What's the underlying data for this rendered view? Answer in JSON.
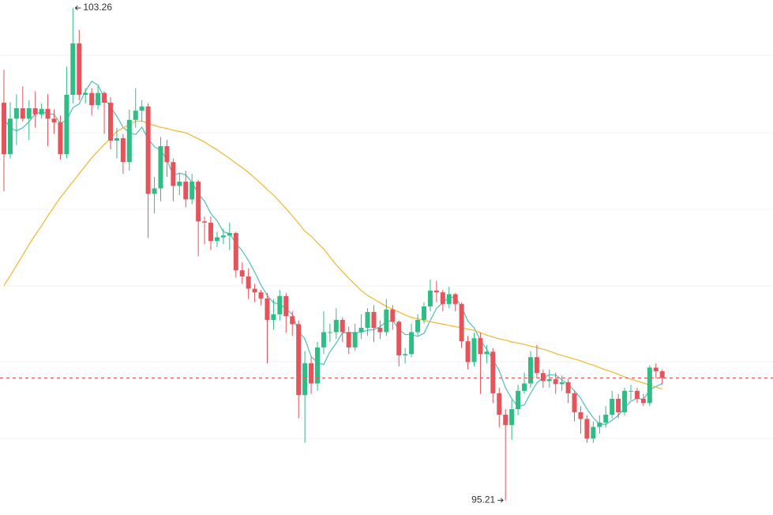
{
  "chart_data": {
    "type": "candlestick",
    "up_color": "#2ebd85",
    "down_color": "#e5535b",
    "ylim": [
      94.97,
      103.39
    ],
    "open": [
      101.71,
      100.87,
      101.45,
      101.62,
      101.45,
      101.62,
      101.52,
      101.61,
      101.45,
      101.39,
      100.87,
      101.84,
      102.68,
      101.84,
      101.87,
      101.67,
      101.87,
      101.71,
      101.09,
      101.13,
      100.74,
      101.43,
      101.58,
      101.65,
      100.22,
      100.31,
      101.0,
      100.74,
      100.35,
      100.42,
      100.13,
      100.42,
      99.77,
      99.75,
      99.45,
      99.51,
      99.54,
      99.58,
      98.97,
      98.87,
      98.67,
      98.61,
      98.51,
      98.16,
      98.25,
      98.55,
      98.22,
      98.09,
      96.93,
      97.45,
      97.12,
      97.71,
      97.96,
      97.96,
      98.16,
      97.96,
      97.71,
      97.96,
      98.03,
      98.29,
      98.03,
      97.96,
      98.33,
      98.13,
      97.58,
      97.6,
      97.96,
      98.16,
      98.38,
      98.64,
      98.61,
      98.42,
      98.58,
      98.42,
      97.81,
      97.47,
      97.86,
      97.6,
      97.64,
      96.96,
      96.61,
      96.44,
      96.7,
      97.0,
      97.12,
      97.55,
      97.29,
      97.16,
      97.19,
      97.11,
      97.14,
      96.96,
      96.65,
      96.54,
      96.22,
      96.41,
      96.48,
      96.61,
      96.87,
      96.65,
      97.0,
      97.0,
      96.87,
      96.8,
      97.38,
      97.32
    ],
    "high": [
      102.25,
      101.72,
      101.85,
      101.98,
      101.75,
      101.9,
      101.7,
      101.85,
      101.6,
      101.5,
      102.3,
      103.26,
      102.9,
      101.95,
      101.95,
      101.98,
      101.9,
      101.8,
      101.3,
      101.2,
      101.6,
      101.95,
      101.75,
      101.7,
      100.5,
      101.15,
      101.1,
      100.8,
      100.55,
      100.6,
      100.55,
      100.45,
      99.85,
      99.85,
      99.6,
      99.65,
      99.75,
      99.6,
      99.1,
      99.0,
      98.75,
      98.65,
      98.6,
      98.5,
      98.65,
      98.6,
      98.3,
      98.15,
      97.65,
      97.55,
      97.8,
      98.3,
      98.1,
      98.35,
      98.2,
      98.05,
      98.1,
      98.25,
      98.35,
      98.4,
      98.15,
      98.5,
      98.4,
      98.15,
      97.7,
      98.1,
      98.25,
      98.45,
      98.82,
      98.8,
      98.65,
      98.7,
      98.6,
      98.45,
      97.9,
      97.95,
      97.95,
      97.75,
      97.7,
      97.05,
      96.7,
      96.85,
      97.1,
      97.3,
      97.65,
      97.75,
      97.35,
      97.35,
      97.3,
      97.25,
      97.2,
      97.0,
      96.75,
      96.6,
      96.5,
      96.6,
      96.75,
      97.0,
      96.95,
      97.05,
      97.1,
      97.05,
      96.95,
      97.42,
      97.45,
      97.35
    ],
    "low": [
      100.26,
      100.8,
      101.02,
      101.4,
      101.1,
      101.3,
      101.45,
      101.0,
      101.2,
      100.78,
      100.8,
      101.7,
      101.75,
      101.7,
      101.5,
      101.6,
      101.2,
      100.95,
      100.8,
      100.55,
      100.6,
      101.3,
      101.4,
      99.5,
      99.9,
      100.1,
      100.5,
      100.1,
      100.2,
      100.0,
      100.05,
      99.2,
      99.4,
      99.3,
      99.35,
      99.4,
      99.3,
      98.85,
      98.75,
      98.5,
      98.45,
      98.4,
      97.45,
      98.0,
      98.15,
      97.95,
      97.9,
      96.55,
      96.15,
      96.95,
      97.0,
      97.6,
      97.8,
      97.85,
      97.8,
      97.6,
      97.65,
      97.85,
      97.9,
      97.8,
      97.85,
      97.9,
      98.0,
      97.4,
      97.45,
      97.55,
      97.9,
      98.1,
      98.3,
      98.45,
      98.3,
      98.35,
      98.3,
      97.7,
      97.35,
      97.4,
      96.95,
      97.45,
      96.8,
      96.4,
      95.21,
      96.2,
      96.6,
      96.95,
      97.05,
      97.2,
      97.05,
      97.05,
      96.95,
      97.0,
      96.8,
      96.5,
      96.3,
      96.15,
      96.15,
      96.3,
      96.4,
      96.55,
      96.55,
      96.6,
      96.85,
      96.8,
      96.75,
      96.75,
      97.2,
      97.1
    ],
    "close": [
      100.87,
      101.45,
      101.62,
      101.45,
      101.62,
      101.52,
      101.61,
      101.45,
      101.39,
      100.87,
      101.84,
      102.68,
      101.84,
      101.87,
      101.67,
      101.87,
      101.71,
      101.09,
      101.13,
      100.74,
      101.43,
      101.58,
      101.65,
      100.22,
      100.31,
      101.0,
      100.74,
      100.35,
      100.42,
      100.13,
      100.42,
      99.77,
      99.75,
      99.45,
      99.51,
      99.54,
      99.58,
      98.97,
      98.87,
      98.67,
      98.61,
      98.51,
      98.16,
      98.25,
      98.55,
      98.22,
      98.09,
      96.93,
      97.45,
      97.12,
      97.71,
      97.96,
      97.96,
      98.16,
      97.96,
      97.71,
      97.96,
      98.03,
      98.29,
      98.03,
      97.96,
      98.33,
      98.13,
      97.58,
      97.6,
      97.96,
      98.16,
      98.38,
      98.64,
      98.61,
      98.42,
      98.58,
      98.42,
      97.81,
      97.47,
      97.86,
      97.6,
      97.64,
      96.96,
      96.61,
      96.44,
      96.7,
      97.0,
      97.12,
      97.55,
      97.29,
      97.16,
      97.19,
      97.11,
      97.14,
      96.96,
      96.65,
      96.54,
      96.22,
      96.41,
      96.48,
      96.61,
      96.87,
      96.65,
      97.0,
      97.0,
      96.87,
      96.8,
      97.38,
      97.32,
      97.21
    ],
    "series": [
      {
        "color": "#4fbfba",
        "values": [
          101.45,
          101.3,
          101.25,
          101.3,
          101.4,
          101.53,
          101.56,
          101.53,
          101.52,
          101.37,
          101.43,
          101.63,
          101.69,
          101.9,
          102.06,
          102.0,
          101.79,
          101.64,
          101.49,
          101.31,
          101.22,
          101.19,
          101.31,
          101.12,
          100.99,
          100.93,
          100.78,
          100.52,
          100.56,
          100.53,
          100.41,
          100.22,
          100.1,
          99.9,
          99.78,
          99.6,
          99.57,
          99.41,
          99.29,
          99.13,
          98.94,
          98.73,
          98.56,
          98.44,
          98.42,
          98.34,
          98.25,
          97.97,
          97.85,
          97.56,
          97.46,
          97.43,
          97.64,
          97.78,
          97.95,
          97.95,
          97.95,
          97.96,
          97.99,
          98.0,
          98.05,
          98.13,
          98.15,
          98.01,
          97.92,
          97.92,
          97.89,
          97.94,
          98.15,
          98.35,
          98.44,
          98.53,
          98.53,
          98.37,
          98.14,
          98.03,
          97.83,
          97.68,
          97.51,
          97.33,
          97.05,
          96.87,
          96.74,
          96.77,
          96.96,
          97.13,
          97.22,
          97.26,
          97.26,
          97.18,
          97.11,
          97.0,
          96.88,
          96.7,
          96.56,
          96.46,
          96.45,
          96.52,
          96.6,
          96.72,
          96.83,
          96.88,
          96.86,
          97.01,
          97.07,
          97.12
        ]
      },
      {
        "color": "#f0b72f",
        "values": [
          98.72,
          98.88,
          99.05,
          99.22,
          99.39,
          99.55,
          99.7,
          99.86,
          100.01,
          100.16,
          100.29,
          100.42,
          100.55,
          100.68,
          100.81,
          100.92,
          101.03,
          101.13,
          101.24,
          101.3,
          101.35,
          101.41,
          101.41,
          101.37,
          101.34,
          101.31,
          101.29,
          101.26,
          101.24,
          101.22,
          101.17,
          101.12,
          101.07,
          101.0,
          100.94,
          100.87,
          100.8,
          100.72,
          100.65,
          100.57,
          100.48,
          100.39,
          100.29,
          100.2,
          100.09,
          99.98,
          99.86,
          99.74,
          99.61,
          99.53,
          99.42,
          99.32,
          99.19,
          99.06,
          98.95,
          98.84,
          98.74,
          98.64,
          98.56,
          98.5,
          98.44,
          98.38,
          98.33,
          98.29,
          98.24,
          98.2,
          98.18,
          98.15,
          98.13,
          98.11,
          98.09,
          98.07,
          98.05,
          98.03,
          98.01,
          97.99,
          97.95,
          97.91,
          97.88,
          97.85,
          97.83,
          97.8,
          97.78,
          97.76,
          97.73,
          97.71,
          97.68,
          97.65,
          97.61,
          97.58,
          97.55,
          97.52,
          97.49,
          97.45,
          97.42,
          97.38,
          97.34,
          97.31,
          97.27,
          97.23,
          97.19,
          97.16,
          97.13,
          97.09,
          97.06,
          97.03
        ]
      }
    ],
    "last_price_line": {
      "color": "#e5535b",
      "dashed": true
    }
  }
}
